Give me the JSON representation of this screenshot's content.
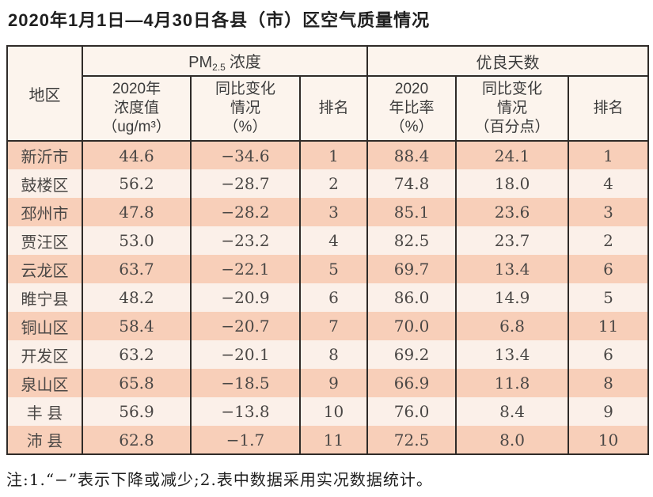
{
  "page": {
    "title": "2020年1月1日—4月30日各县（市）区空气质量情况",
    "footnote": "注:1.“−”表示下降或减少;2.表中数据采用实况数据统计。"
  },
  "colors": {
    "row_odd": "#f8cfb9",
    "row_even": "#fbf0e9",
    "header_bg": "#fcf4ed",
    "border": "#2f2b28"
  },
  "table": {
    "region_header": "地区",
    "group_pm": {
      "prefix": "PM",
      "sub": "2.5",
      "suffix": "浓度"
    },
    "group_good": "优良天数",
    "subheaders": [
      {
        "lines": [
          "2020年",
          "浓度值",
          "（ug/m³）"
        ]
      },
      {
        "lines": [
          "同比变化",
          "情况",
          "（%）"
        ]
      },
      {
        "lines": [
          "排名"
        ]
      },
      {
        "lines": [
          "2020",
          "年比率",
          "（%）"
        ]
      },
      {
        "lines": [
          "同比变化",
          "情况",
          "（百分点）"
        ]
      },
      {
        "lines": [
          "排名"
        ]
      }
    ],
    "rows": [
      {
        "cells": [
          "新沂市",
          "44.6",
          "−34.6",
          "1",
          "88.4",
          "24.1",
          "1"
        ]
      },
      {
        "cells": [
          "鼓楼区",
          "56.2",
          "−28.7",
          "2",
          "74.8",
          "18.0",
          "4"
        ]
      },
      {
        "cells": [
          "邳州市",
          "47.8",
          "−28.2",
          "3",
          "85.1",
          "23.6",
          "3"
        ]
      },
      {
        "cells": [
          "贾汪区",
          "53.0",
          "−23.2",
          "4",
          "82.5",
          "23.7",
          "2"
        ]
      },
      {
        "cells": [
          "云龙区",
          "63.7",
          "−22.1",
          "5",
          "69.7",
          "13.4",
          "6"
        ]
      },
      {
        "cells": [
          "睢宁县",
          "48.2",
          "−20.9",
          "6",
          "86.0",
          "14.9",
          "5"
        ]
      },
      {
        "cells": [
          "铜山区",
          "58.4",
          "−20.7",
          "7",
          "70.0",
          "6.8",
          "11"
        ]
      },
      {
        "cells": [
          "开发区",
          "63.2",
          "−20.1",
          "8",
          "69.2",
          "13.4",
          "6"
        ]
      },
      {
        "cells": [
          "泉山区",
          "65.8",
          "−18.5",
          "9",
          "66.9",
          "11.8",
          "8"
        ]
      },
      {
        "cells": [
          "丰 县",
          "56.9",
          "−13.8",
          "10",
          "76.0",
          "8.4",
          "9"
        ]
      },
      {
        "cells": [
          "沛 县",
          "62.8",
          "−1.7",
          "11",
          "72.5",
          "8.0",
          "10"
        ]
      }
    ]
  }
}
